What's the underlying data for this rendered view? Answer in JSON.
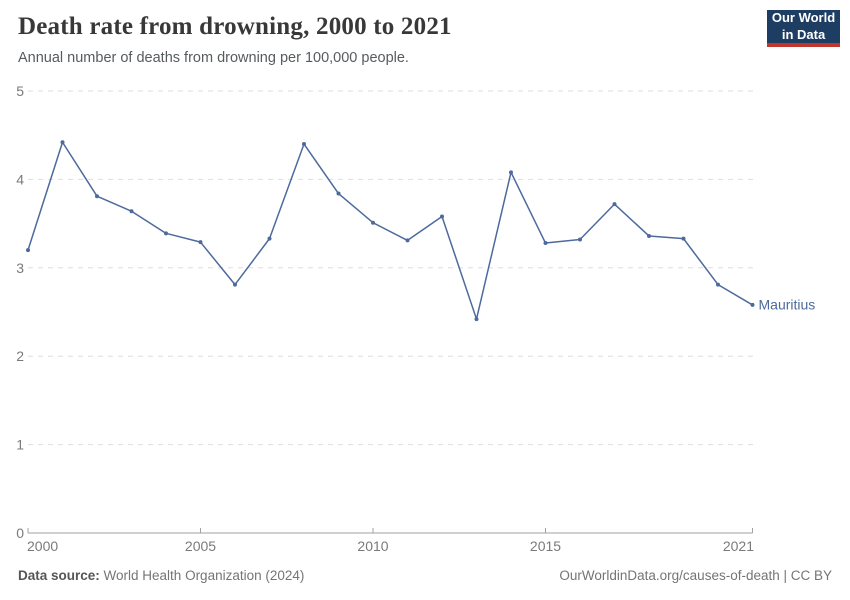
{
  "header": {
    "title": "Death rate from drowning, 2000 to 2021",
    "subtitle": "Annual number of deaths from drowning per 100,000 people."
  },
  "logo": {
    "line1": "Our World",
    "line2": "in Data",
    "bg_color": "#1d3d63",
    "accent_color": "#c0362c"
  },
  "footer": {
    "source_label": "Data source:",
    "source_value": " World Health Organization (2024)",
    "credit": "OurWorldinData.org/causes-of-death | CC BY"
  },
  "chart_data": {
    "type": "line",
    "title": "Death rate from drowning, 2000 to 2021",
    "subtitle": "Annual number of deaths from drowning per 100,000 people.",
    "x": [
      2000,
      2001,
      2002,
      2003,
      2004,
      2005,
      2006,
      2007,
      2008,
      2009,
      2010,
      2011,
      2012,
      2013,
      2014,
      2015,
      2016,
      2017,
      2018,
      2019,
      2020,
      2021
    ],
    "series": [
      {
        "name": "Mauritius",
        "color": "#4c6a9c",
        "values": [
          3.2,
          4.42,
          3.81,
          3.64,
          3.39,
          3.29,
          2.81,
          3.33,
          4.4,
          3.84,
          3.51,
          3.31,
          3.58,
          2.42,
          4.08,
          3.28,
          3.32,
          3.72,
          3.36,
          3.33,
          2.81,
          2.58
        ]
      }
    ],
    "xlabel": "",
    "ylabel": "",
    "ylim": [
      0,
      5
    ],
    "yticks": [
      0,
      1,
      2,
      3,
      4,
      5
    ],
    "xticks": [
      2000,
      2005,
      2010,
      2015,
      2021
    ],
    "grid": "horizontal-dashed",
    "legend": "series-end-label",
    "grid_color": "#dedede",
    "axis_color": "#a1a1a1",
    "tick_label_color": "#7a7a7a"
  }
}
